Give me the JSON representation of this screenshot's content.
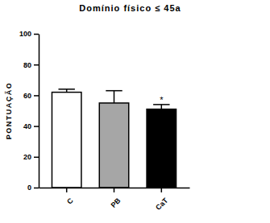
{
  "chart_data": {
    "type": "bar",
    "title": "Domínio físico ≤ 45a",
    "y_label": "PONTUAÇÃO",
    "categories": [
      "C",
      "PB",
      "CaT"
    ],
    "values": [
      62,
      55,
      51
    ],
    "errors": [
      2,
      8,
      3
    ],
    "colors": [
      "#ffffff",
      "#a6a6a6",
      "#000000"
    ],
    "ylim": [
      0,
      100
    ],
    "yticks": [
      0,
      20,
      40,
      60,
      80,
      100
    ],
    "grid": false,
    "annotations": [
      {
        "text": "*",
        "category": "CaT"
      }
    ]
  }
}
